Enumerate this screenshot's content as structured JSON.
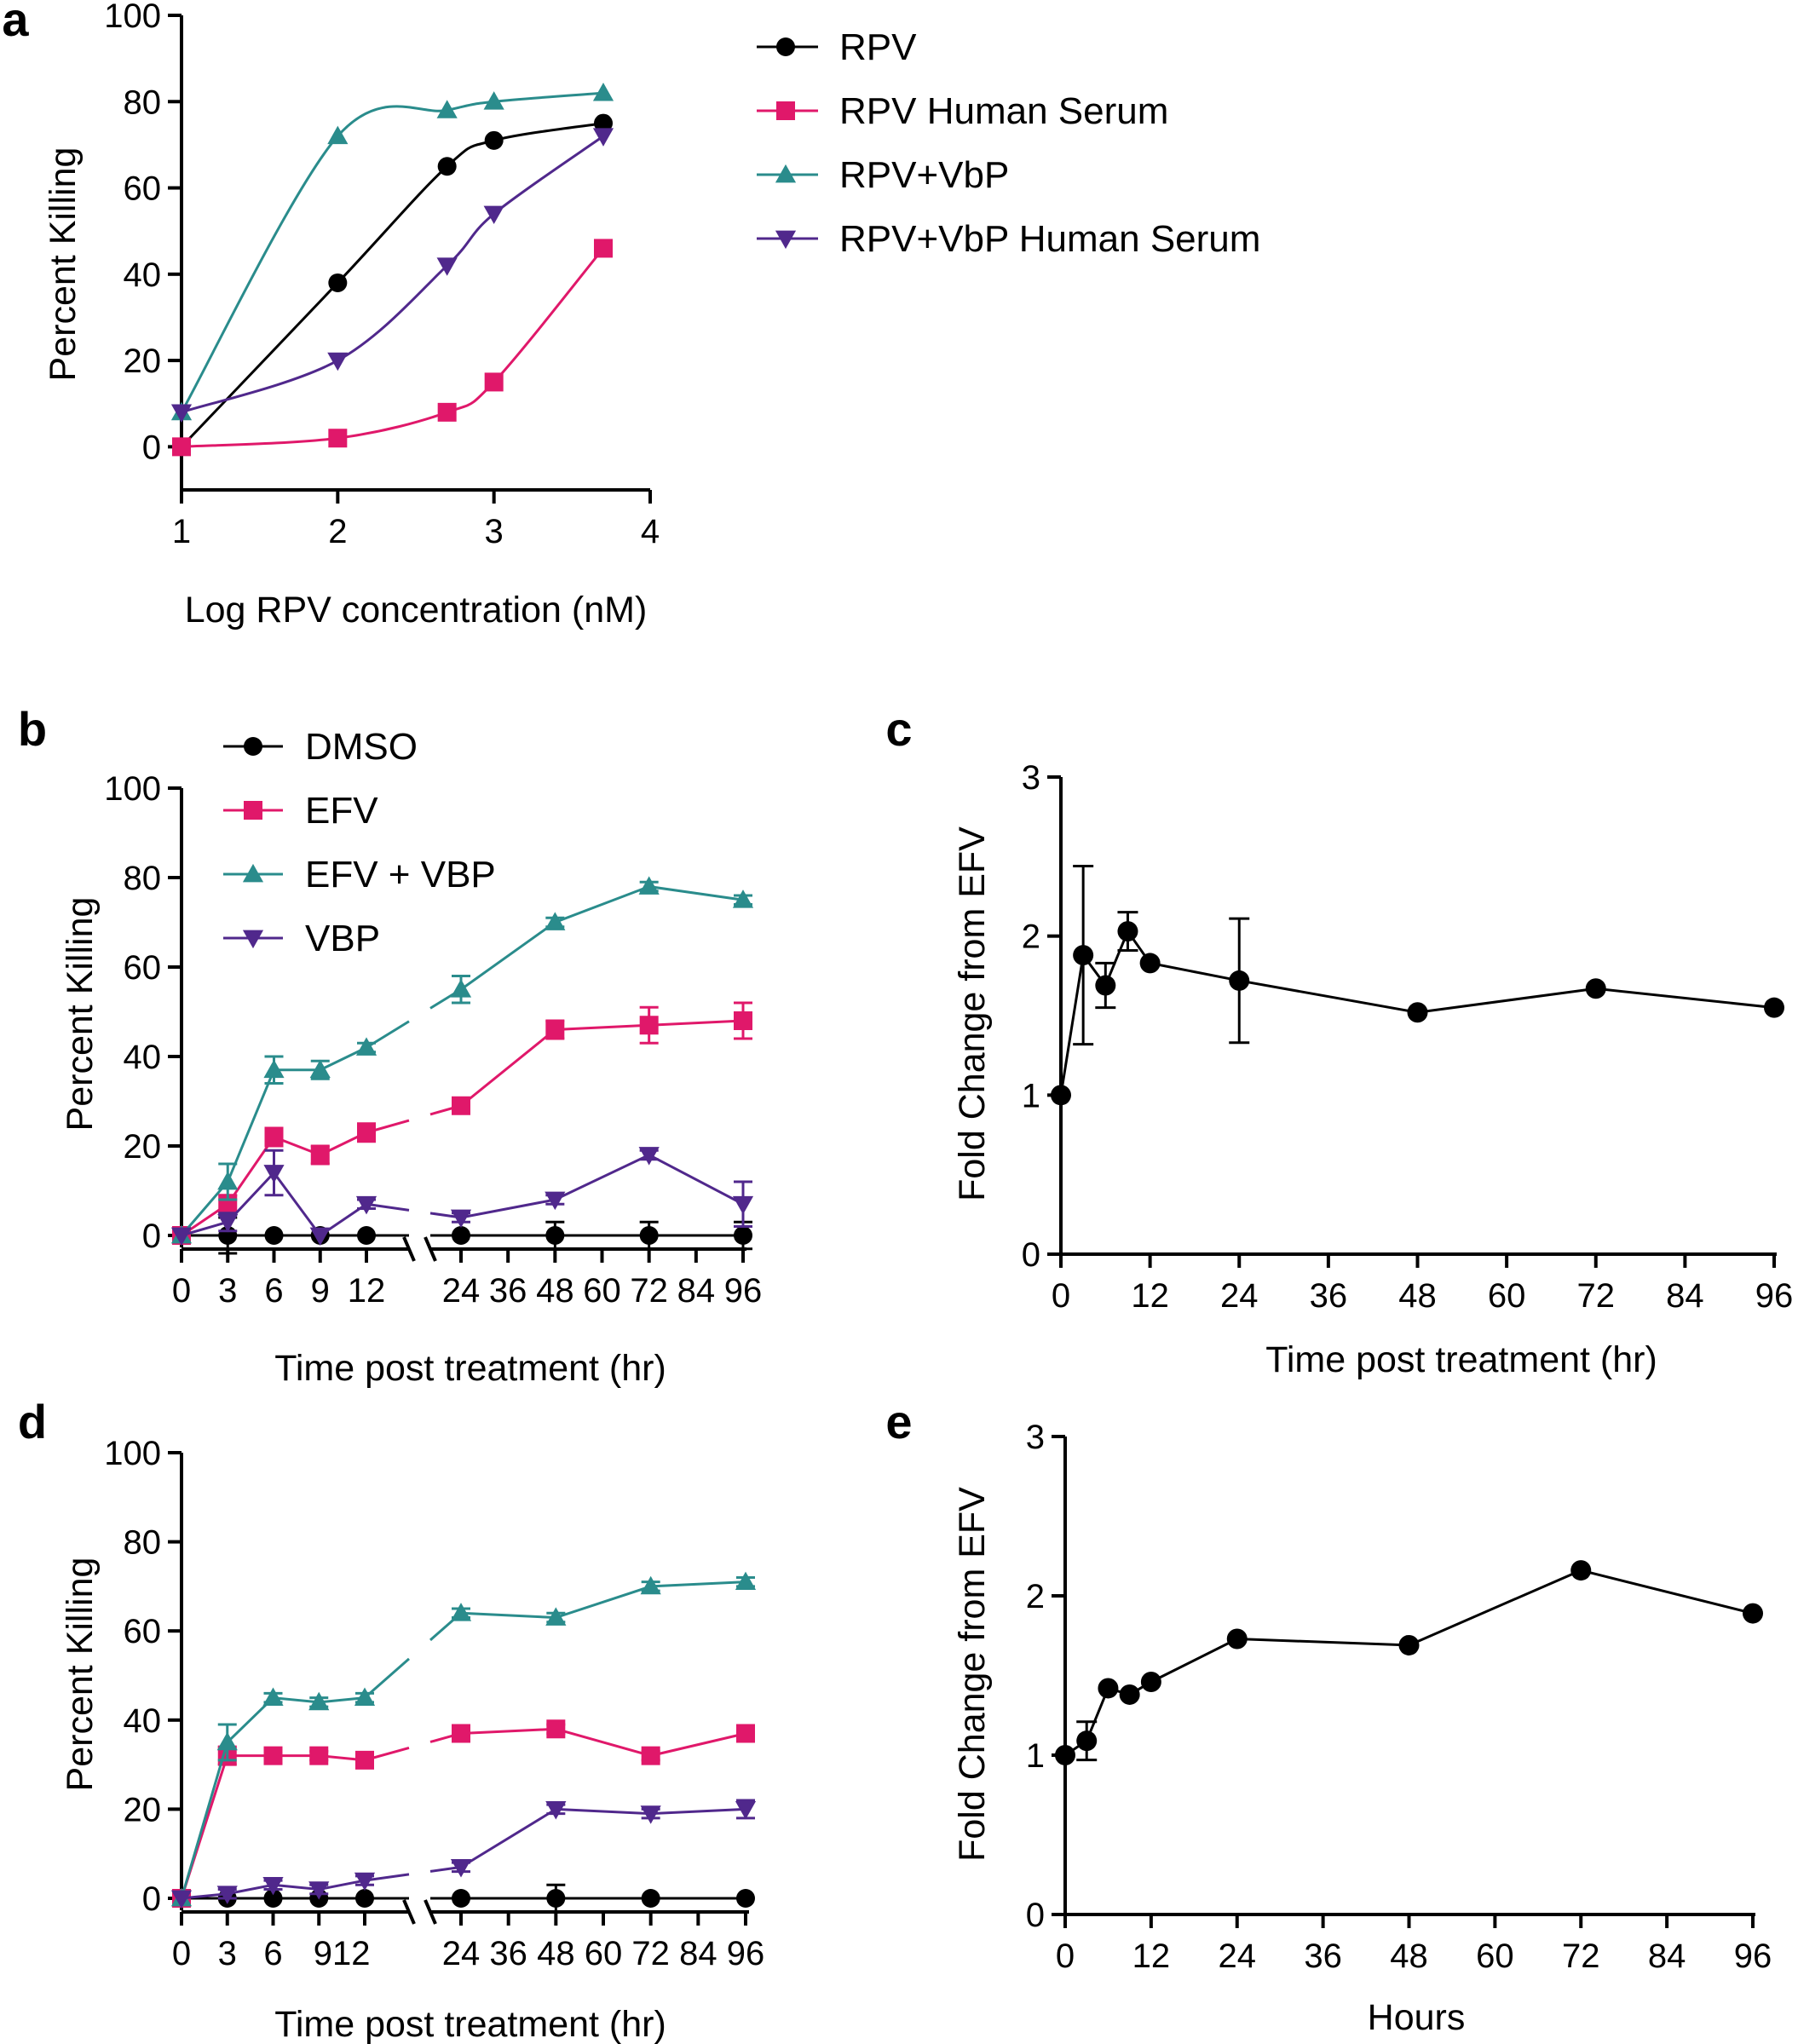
{
  "colors": {
    "black": "#000000",
    "magenta": "#E0186A",
    "teal": "#2A8C8C",
    "purple": "#50288C"
  },
  "chart_data": [
    {
      "id": "a",
      "type": "scatter",
      "panel_label": "a",
      "xlabel": "Log RPV concentration (nM)",
      "ylabel": "Percent  Killing",
      "xlim": [
        1,
        4
      ],
      "ylim": [
        -10,
        100
      ],
      "xticks": [
        "1",
        "2",
        "3",
        "4"
      ],
      "yticks": [
        "0",
        "20",
        "40",
        "60",
        "80",
        "100"
      ],
      "series": [
        {
          "name": "RPV",
          "color": "#000000",
          "marker": "circle",
          "fit": "sigmoid",
          "x": [
            1,
            2,
            2.7,
            3,
            3.7
          ],
          "y": [
            0,
            38,
            65,
            71,
            75
          ]
        },
        {
          "name": "RPV Human Serum",
          "color": "#E0186A",
          "marker": "square",
          "fit": "sigmoid",
          "x": [
            1,
            2,
            2.7,
            3,
            3.7
          ],
          "y": [
            0,
            2,
            8,
            15,
            46
          ]
        },
        {
          "name": "RPV+VbP",
          "color": "#2A8C8C",
          "marker": "triangle-up",
          "fit": "sigmoid",
          "x": [
            1,
            2,
            2.7,
            3,
            3.7
          ],
          "y": [
            8,
            72,
            78,
            80,
            82
          ]
        },
        {
          "name": "RPV+VbP Human Serum",
          "color": "#50288C",
          "marker": "triangle-down",
          "fit": "sigmoid",
          "x": [
            1,
            2,
            2.7,
            3,
            3.7
          ],
          "y": [
            8,
            20,
            42,
            54,
            72
          ]
        }
      ],
      "legend": "top-right"
    },
    {
      "id": "b",
      "type": "line",
      "panel_label": "b",
      "xlabel": "Time post treatment (hr)",
      "ylabel": "Percent Killing",
      "ylim": [
        0,
        100
      ],
      "xticks": [
        "0",
        "3",
        "6",
        "9",
        "12",
        "24",
        "36",
        "48",
        "60",
        "72",
        "84",
        "96"
      ],
      "yticks": [
        "0",
        "20",
        "40",
        "60",
        "80",
        "100"
      ],
      "broken_axis": [
        12,
        24
      ],
      "series": [
        {
          "name": "DMSO",
          "color": "#000000",
          "marker": "circle",
          "x": [
            0,
            3,
            6,
            9,
            12,
            24,
            48,
            72,
            96
          ],
          "y": [
            0,
            0,
            0,
            0,
            0,
            0,
            0,
            0,
            0
          ],
          "err": [
            0,
            4,
            0,
            0,
            0,
            0,
            3,
            3,
            3
          ]
        },
        {
          "name": "EFV",
          "color": "#E0186A",
          "marker": "square",
          "x": [
            0,
            3,
            6,
            9,
            12,
            24,
            48,
            72,
            96
          ],
          "y": [
            0,
            7,
            22,
            18,
            23,
            29,
            46,
            47,
            48
          ],
          "err": [
            0,
            2,
            2,
            2,
            2,
            1,
            2,
            4,
            4
          ]
        },
        {
          "name": "EFV + VBP",
          "color": "#2A8C8C",
          "marker": "triangle-up",
          "x": [
            0,
            3,
            6,
            9,
            12,
            24,
            48,
            72,
            96
          ],
          "y": [
            0,
            12,
            37,
            37,
            42,
            55,
            70,
            78,
            75
          ],
          "err": [
            0,
            4,
            3,
            2,
            1,
            3,
            1,
            1,
            1
          ]
        },
        {
          "name": "VBP",
          "color": "#50288C",
          "marker": "triangle-down",
          "x": [
            0,
            3,
            6,
            9,
            12,
            24,
            48,
            72,
            96
          ],
          "y": [
            0,
            3,
            14,
            0,
            7,
            4,
            8,
            18,
            7
          ],
          "err": [
            0,
            2,
            5,
            0,
            1,
            1,
            1,
            1,
            5
          ]
        }
      ],
      "legend": "top-left"
    },
    {
      "id": "c",
      "type": "line",
      "panel_label": "c",
      "xlabel": "Time post treatment (hr)",
      "ylabel": "Fold Change from EFV",
      "xlim": [
        0,
        96
      ],
      "ylim": [
        0,
        3
      ],
      "xticks": [
        "0",
        "12",
        "24",
        "36",
        "48",
        "60",
        "72",
        "84",
        "96"
      ],
      "yticks": [
        "0",
        "1",
        "2",
        "3"
      ],
      "series": [
        {
          "name": "Fold change",
          "color": "#000000",
          "marker": "circle",
          "x": [
            0,
            3,
            6,
            9,
            12,
            24,
            48,
            72,
            96
          ],
          "y": [
            1,
            1.88,
            1.69,
            2.03,
            1.83,
            1.72,
            1.52,
            1.67,
            1.55
          ],
          "err": [
            0,
            0.56,
            0.14,
            0.12,
            0,
            0.39,
            0,
            0,
            0
          ]
        }
      ]
    },
    {
      "id": "d",
      "type": "line",
      "panel_label": "d",
      "xlabel": "Time post treatment (hr)",
      "ylabel": "Percent Killing",
      "ylim": [
        0,
        100
      ],
      "xticks": [
        "0",
        "3",
        "6",
        "9",
        "12",
        "24",
        "36",
        "48",
        "60",
        "72",
        "84",
        "96"
      ],
      "tick_text": "912",
      "yticks": [
        "0",
        "20",
        "40",
        "60",
        "80",
        "100"
      ],
      "broken_axis": [
        12,
        24
      ],
      "series": [
        {
          "name": "DMSO",
          "color": "#000000",
          "marker": "circle",
          "x": [
            0,
            3,
            6,
            9,
            12,
            24,
            48,
            72,
            96
          ],
          "y": [
            0,
            0,
            0,
            0,
            0,
            0,
            0,
            0,
            0
          ],
          "err": [
            0,
            0,
            0,
            0,
            0,
            0,
            3,
            0,
            0
          ]
        },
        {
          "name": "EFV",
          "color": "#E0186A",
          "marker": "square",
          "x": [
            0,
            3,
            6,
            9,
            12,
            24,
            48,
            72,
            96
          ],
          "y": [
            0,
            32,
            32,
            32,
            31,
            37,
            38,
            32,
            37
          ],
          "err": [
            0,
            2,
            1,
            1,
            1,
            1,
            1,
            1,
            1
          ]
        },
        {
          "name": "EFV + VBP",
          "color": "#2A8C8C",
          "marker": "triangle-up",
          "x": [
            0,
            3,
            6,
            9,
            12,
            24,
            48,
            72,
            96
          ],
          "y": [
            0,
            35,
            45,
            44,
            45,
            64,
            63,
            70,
            71
          ],
          "err": [
            0,
            4,
            1,
            1,
            1,
            1,
            1,
            1,
            1
          ]
        },
        {
          "name": "VBP",
          "color": "#50288C",
          "marker": "triangle-down",
          "x": [
            0,
            3,
            6,
            9,
            12,
            24,
            48,
            72,
            96
          ],
          "y": [
            0,
            1,
            3,
            2,
            4,
            7,
            20,
            19,
            20
          ],
          "err": [
            0,
            1,
            1,
            1,
            1,
            1,
            1,
            1,
            2
          ]
        }
      ]
    },
    {
      "id": "e",
      "type": "line",
      "panel_label": "e",
      "xlabel": "Hours",
      "ylabel": "Fold Change from EFV",
      "xlim": [
        0,
        96
      ],
      "ylim": [
        0,
        3
      ],
      "xticks": [
        "0",
        "12",
        "24",
        "36",
        "48",
        "60",
        "72",
        "84",
        "96"
      ],
      "yticks": [
        "0",
        "1",
        "2",
        "3"
      ],
      "series": [
        {
          "name": "Fold change",
          "color": "#000000",
          "marker": "circle",
          "x": [
            0,
            3,
            6,
            9,
            12,
            24,
            48,
            72,
            96
          ],
          "y": [
            1,
            1.09,
            1.42,
            1.38,
            1.46,
            1.73,
            1.69,
            2.16,
            1.89
          ],
          "err": [
            0,
            0.12,
            0,
            0,
            0,
            0,
            0,
            0,
            0
          ]
        }
      ]
    }
  ]
}
